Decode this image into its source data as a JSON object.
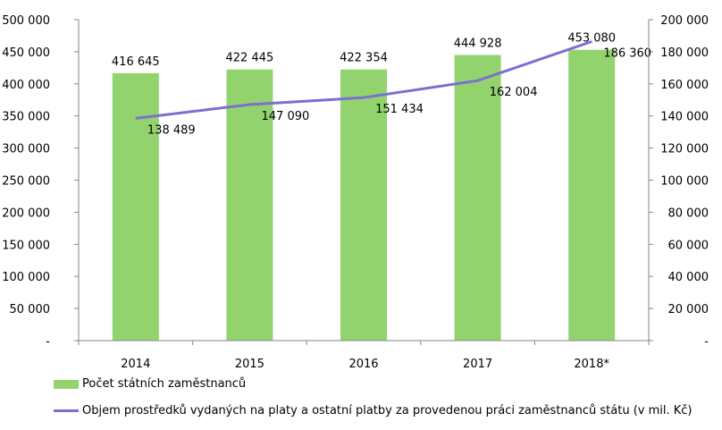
{
  "chart_data": {
    "type": "bar",
    "categories": [
      "2014",
      "2015",
      "2016",
      "2017",
      "2018*"
    ],
    "series": [
      {
        "name": "Počet státních zaměstnanců",
        "type": "bar",
        "axis": "left",
        "values": [
          416645,
          422445,
          422354,
          444928,
          453080
        ],
        "labels": [
          "416 645",
          "422 445",
          "422 354",
          "444 928",
          "453 080"
        ],
        "color": "#92d36e"
      },
      {
        "name": "Objem prostředků vydaných na platy a ostatní platby za provedenou práci zaměstnanců státu (v mil. Kč)",
        "type": "line",
        "axis": "right",
        "values": [
          138489,
          147090,
          151434,
          162004,
          186360
        ],
        "labels": [
          "138 489",
          "147 090",
          "151 434",
          "162 004",
          "186 360"
        ],
        "color": "#7b6fd0"
      }
    ],
    "y_left": {
      "range": [
        0,
        500000
      ],
      "ticks": [
        "-",
        "50 000",
        "100 000",
        "150 000",
        "200 000",
        "250 000",
        "300 000",
        "350 000",
        "400 000",
        "450 000",
        "500 000"
      ]
    },
    "y_right": {
      "range": [
        0,
        200000
      ],
      "ticks": [
        "-",
        "20 000",
        "40 000",
        "60 000",
        "80 000",
        "100 000",
        "120 000",
        "140 000",
        "160 000",
        "180 000",
        "200 000"
      ]
    },
    "grid": false,
    "legend_position": "bottom"
  }
}
